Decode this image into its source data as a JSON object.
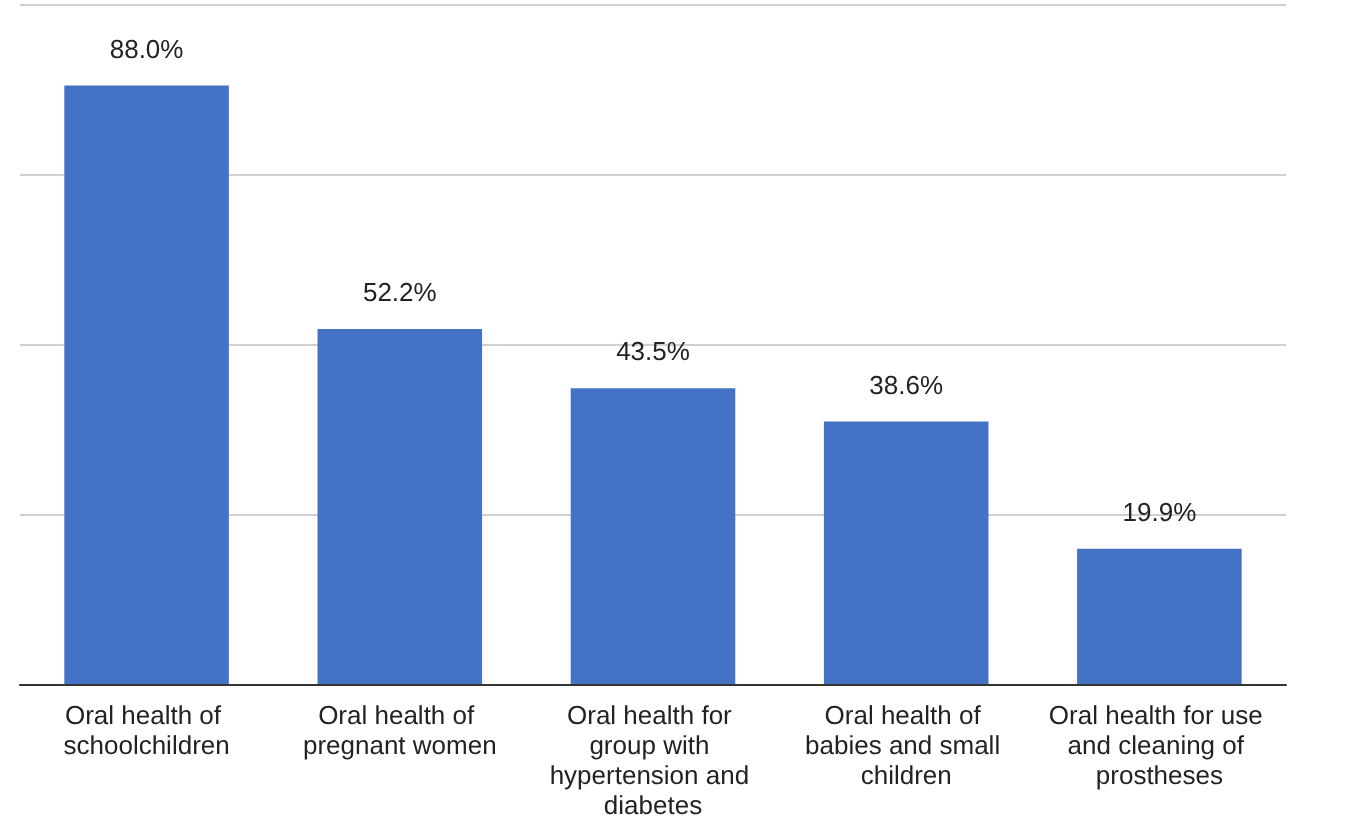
{
  "chart_data": {
    "type": "bar",
    "categories": [
      "Oral health of schoolchildren",
      "Oral health of pregnant women",
      "Oral health for group with hypertension and diabetes",
      "Oral health of babies and small children",
      "Oral health for use and cleaning of prostheses"
    ],
    "values": [
      88.0,
      52.2,
      43.5,
      38.6,
      19.9
    ],
    "value_labels": [
      "88.0%",
      "52.2%",
      "43.5%",
      "38.6%",
      "19.9%"
    ],
    "color": "#4472c4",
    "ylim": [
      0,
      100
    ],
    "yticks": [
      {
        "value": 0,
        "label": null
      },
      {
        "value": 25,
        "label": null
      },
      {
        "value": 50,
        "label": null
      },
      {
        "value": 75,
        "label": null
      },
      {
        "value": 100,
        "label": null
      }
    ],
    "grid": "y",
    "tick_labels": "x"
  }
}
